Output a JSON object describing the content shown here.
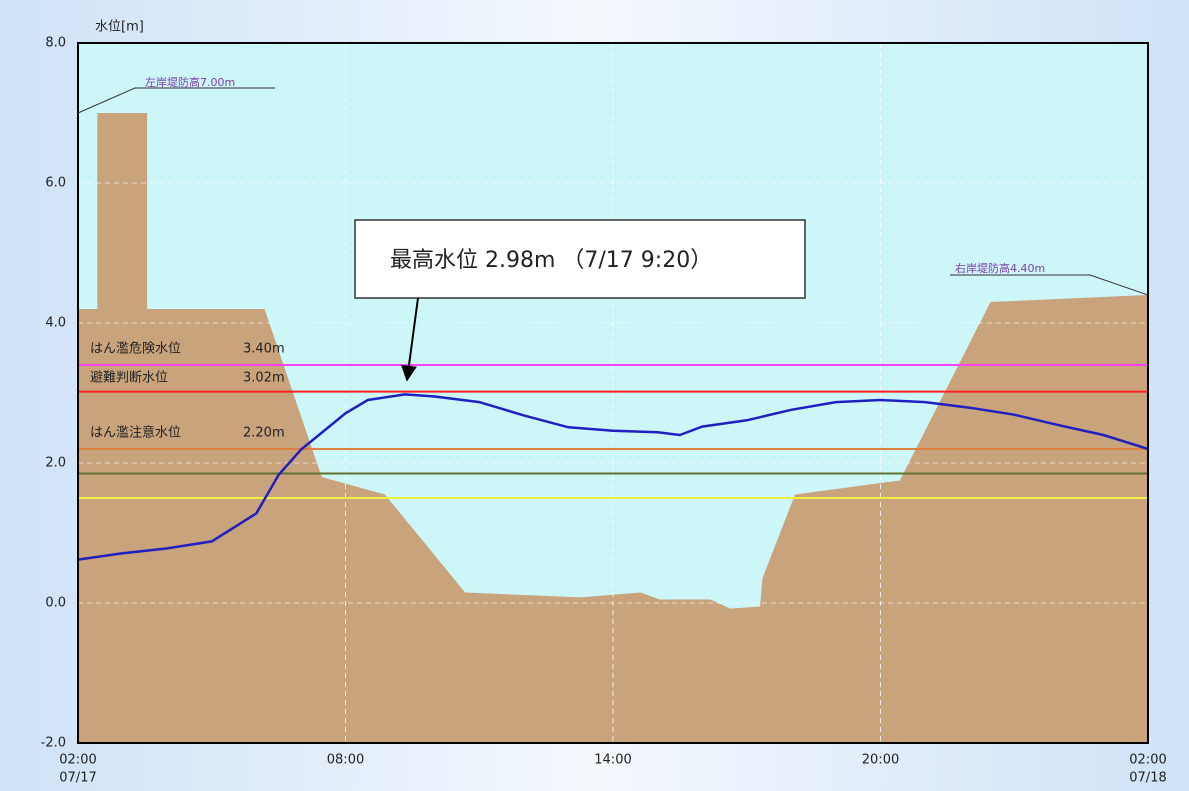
{
  "chart_data": {
    "type": "line",
    "y_label": "水位[m]",
    "ylim": [
      -2,
      8
    ],
    "yticks": [
      {
        "value": -2,
        "label": "-2.0"
      },
      {
        "value": 0,
        "label": "0.0"
      },
      {
        "value": 2,
        "label": "2.0"
      },
      {
        "value": 4,
        "label": "4.0"
      },
      {
        "value": 6,
        "label": "6.0"
      },
      {
        "value": 8,
        "label": "8.0"
      }
    ],
    "xlim": [
      "07/17 02:00",
      "07/18 02:00"
    ],
    "xticks": [
      {
        "value": "07/17 02:00",
        "label": "02:00",
        "date": "07/17"
      },
      {
        "value": "07/17 08:00",
        "label": "08:00"
      },
      {
        "value": "07/17 14:00",
        "label": "14:00"
      },
      {
        "value": "07/17 20:00",
        "label": "20:00"
      },
      {
        "value": "07/18 02:00",
        "label": "02:00",
        "date": "07/18"
      }
    ],
    "grid": true,
    "color": "#2020c0",
    "x": [
      "07/17 02:00",
      "07/17 03:00",
      "07/17 04:00",
      "07/17 05:00",
      "07/17 06:00",
      "07/17 06:30",
      "07/17 07:00",
      "07/17 07:30",
      "07/17 08:00",
      "07/17 08:30",
      "07/17 09:20",
      "07/17 10:00",
      "07/17 11:00",
      "07/17 12:00",
      "07/17 13:00",
      "07/17 14:00",
      "07/17 15:00",
      "07/17 15:30",
      "07/17 16:00",
      "07/17 17:00",
      "07/17 18:00",
      "07/17 19:00",
      "07/17 20:00",
      "07/17 21:00",
      "07/17 22:00",
      "07/17 23:00",
      "07/18 00:00",
      "07/18 01:00",
      "07/18 02:00"
    ],
    "values": [
      0.62,
      0.71,
      0.78,
      0.88,
      1.28,
      1.83,
      2.19,
      2.45,
      2.71,
      2.9,
      2.98,
      2.95,
      2.87,
      2.68,
      2.51,
      2.46,
      2.44,
      2.4,
      2.52,
      2.61,
      2.76,
      2.87,
      2.9,
      2.87,
      2.79,
      2.69,
      2.54,
      2.4,
      2.2
    ],
    "terrain": {
      "color": "#c9a37c",
      "x": [
        "07/17 02:00",
        "07/17 02:26",
        "07/17 02:26",
        "07/17 03:33",
        "07/17 03:33",
        "07/17 06:11",
        "07/17 07:28",
        "07/17 08:53",
        "07/17 10:41",
        "07/17 13:16",
        "07/17 14:37",
        "07/17 15:03",
        "07/17 16:11",
        "07/17 16:38",
        "07/17 17:18",
        "07/17 17:21",
        "07/17 18:05",
        "07/17 20:26",
        "07/17 22:28",
        "07/18 02:00"
      ],
      "values": [
        4.2,
        4.2,
        7.0,
        7.0,
        4.2,
        4.2,
        1.8,
        1.55,
        0.15,
        0.08,
        0.15,
        0.05,
        0.05,
        -0.08,
        -0.05,
        0.35,
        1.55,
        1.75,
        4.3,
        4.4
      ]
    },
    "reference_lines": [
      {
        "name": "はん濫危険水位",
        "value_label": "3.40m",
        "value": 3.4,
        "color": "#ff40ff"
      },
      {
        "name": "避難判断水位",
        "value_label": "3.02m",
        "value": 3.02,
        "color": "#ff2020"
      },
      {
        "name": "はん濫注意水位",
        "value_label": "2.20m",
        "value": 2.2,
        "color": "#e08040"
      },
      {
        "value": 1.85,
        "color": "#607030"
      },
      {
        "value": 1.5,
        "color": "#f0f040"
      }
    ],
    "annotations": {
      "peak": "最高水位  2.98m （7/17  9:20）",
      "left_bank": "左岸堤防高7.00m",
      "right_bank": "右岸堤防高4.40m"
    }
  }
}
